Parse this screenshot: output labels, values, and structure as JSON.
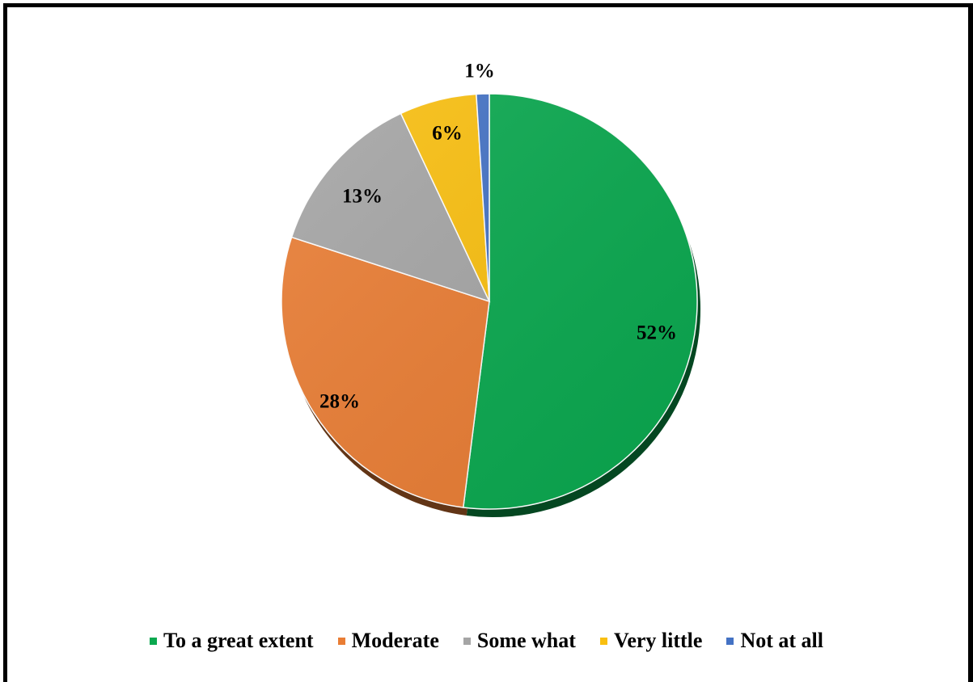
{
  "chart_data": {
    "type": "pie",
    "title": "",
    "categories": [
      "To a great extent",
      "Moderate",
      "Some what",
      "Very little",
      "Not at all"
    ],
    "values": [
      52,
      28,
      13,
      6,
      1
    ],
    "data_labels": [
      "52%",
      "28%",
      "13%",
      "6%",
      "1%"
    ],
    "colors": [
      "#0aa84f",
      "#e97d34",
      "#a5a5a5",
      "#f9bf10",
      "#4472c4"
    ],
    "start_angle_deg": 0,
    "direction": "clockwise",
    "legend_position": "bottom"
  }
}
